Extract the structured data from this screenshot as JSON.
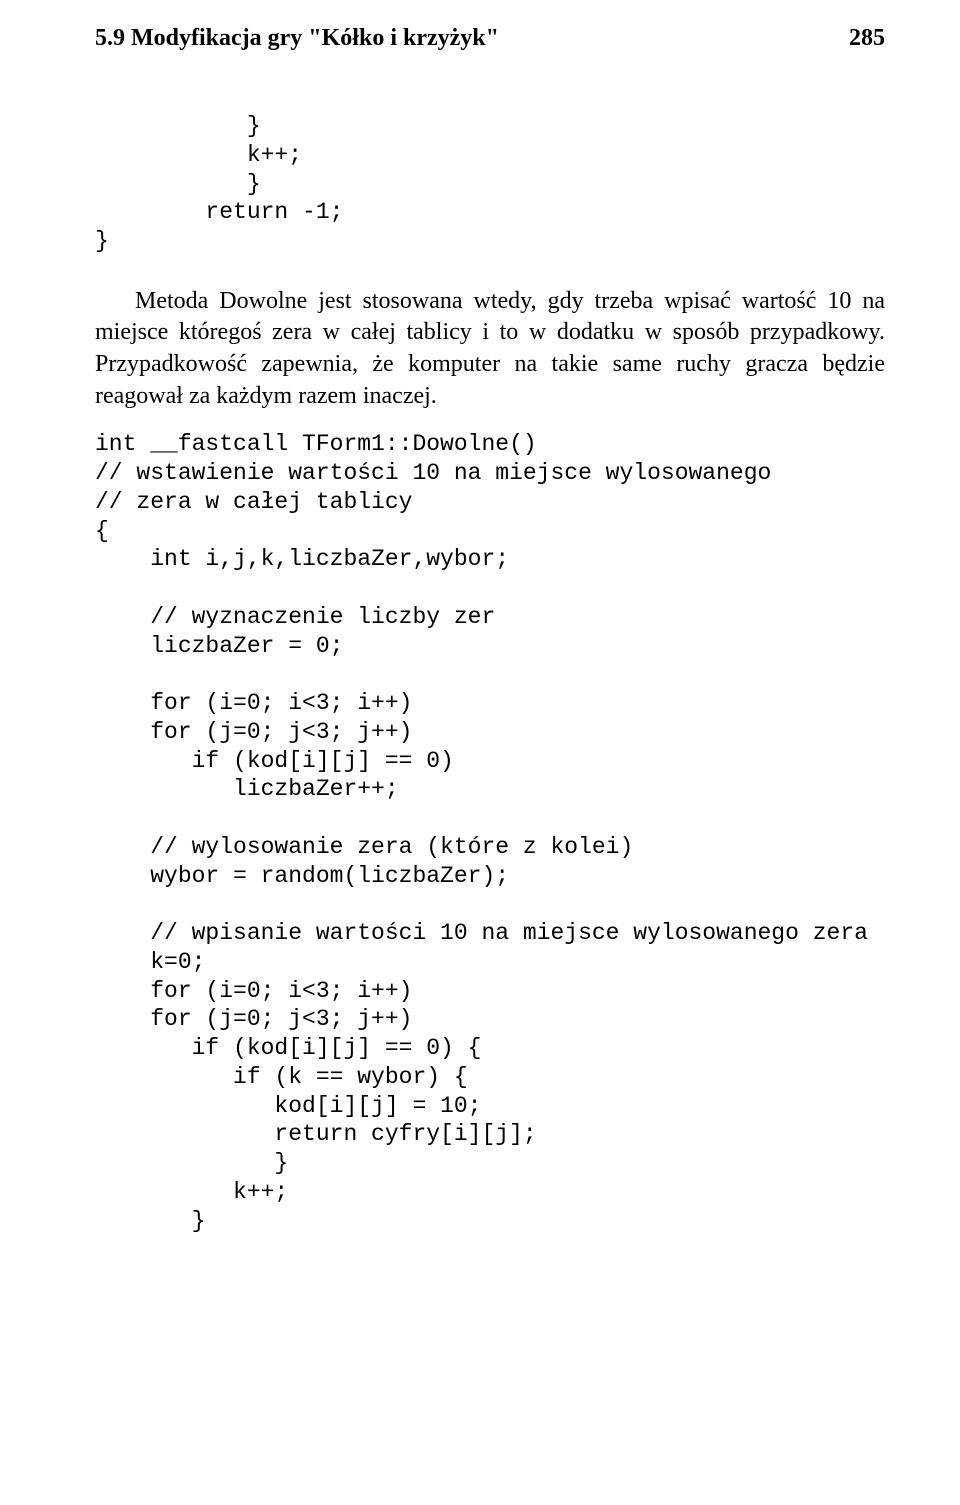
{
  "header": {
    "section": "5.9 Modyfikacja gry \"Kółko i krzyżyk\"",
    "page_number": "285"
  },
  "code1": "           }\n           k++;\n           }\n        return -1;\n}",
  "para1": "Metoda Dowolne jest stosowana wtedy, gdy trzeba wpisać wartość 10 na miejsce któregoś zera w całej tablicy i to w dodatku w sposób przypadkowy. Przypadkowość zapewnia, że komputer na takie same ruchy gracza będzie reagował za każdym razem inaczej.",
  "code2": "int __fastcall TForm1::Dowolne()\n// wstawienie wartości 10 na miejsce wylosowanego\n// zera w całej tablicy\n{\n    int i,j,k,liczbaZer,wybor;\n\n    // wyznaczenie liczby zer\n    liczbaZer = 0;\n\n    for (i=0; i<3; i++)\n    for (j=0; j<3; j++)\n       if (kod[i][j] == 0)\n          liczbaZer++;\n\n    // wylosowanie zera (które z kolei)\n    wybor = random(liczbaZer);\n\n    // wpisanie wartości 10 na miejsce wylosowanego zera\n    k=0;\n    for (i=0; i<3; i++)\n    for (j=0; j<3; j++)\n       if (kod[i][j] == 0) {\n          if (k == wybor) {\n             kod[i][j] = 10;\n             return cyfry[i][j];\n             }\n          k++;\n       }"
}
